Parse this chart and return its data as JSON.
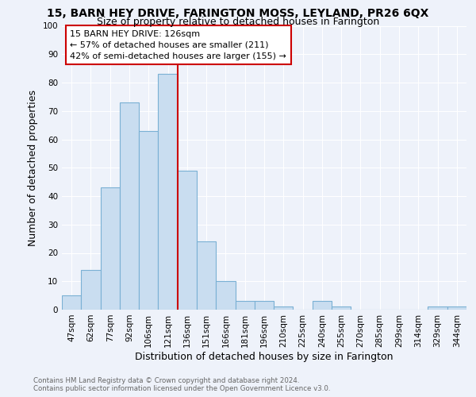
{
  "title": "15, BARN HEY DRIVE, FARINGTON MOSS, LEYLAND, PR26 6QX",
  "subtitle": "Size of property relative to detached houses in Farington",
  "xlabel": "Distribution of detached houses by size in Farington",
  "ylabel": "Number of detached properties",
  "categories": [
    "47sqm",
    "62sqm",
    "77sqm",
    "92sqm",
    "106sqm",
    "121sqm",
    "136sqm",
    "151sqm",
    "166sqm",
    "181sqm",
    "196sqm",
    "210sqm",
    "225sqm",
    "240sqm",
    "255sqm",
    "270sqm",
    "285sqm",
    "299sqm",
    "314sqm",
    "329sqm",
    "344sqm"
  ],
  "values": [
    5,
    14,
    43,
    73,
    63,
    83,
    49,
    24,
    10,
    3,
    3,
    1,
    0,
    3,
    1,
    0,
    0,
    0,
    0,
    1,
    1
  ],
  "bar_color": "#c9ddf0",
  "bar_edge_color": "#7ab0d4",
  "vline_color": "#cc0000",
  "annotation_box_color": "#cc0000",
  "background_color": "#eef2fa",
  "plot_bg_color": "#eef2fa",
  "grid_color": "#ffffff",
  "footer_text": "Contains HM Land Registry data © Crown copyright and database right 2024.\nContains public sector information licensed under the Open Government Licence v3.0.",
  "ylim": [
    0,
    100
  ],
  "title_fontsize": 10,
  "subtitle_fontsize": 9,
  "axis_label_fontsize": 9,
  "tick_fontsize": 7.5,
  "annotation_text_line1": "15 BARN HEY DRIVE: 126sqm",
  "annotation_text_line2": "← 57% of detached houses are smaller (211)",
  "annotation_text_line3": "42% of semi-detached houses are larger (155) →"
}
